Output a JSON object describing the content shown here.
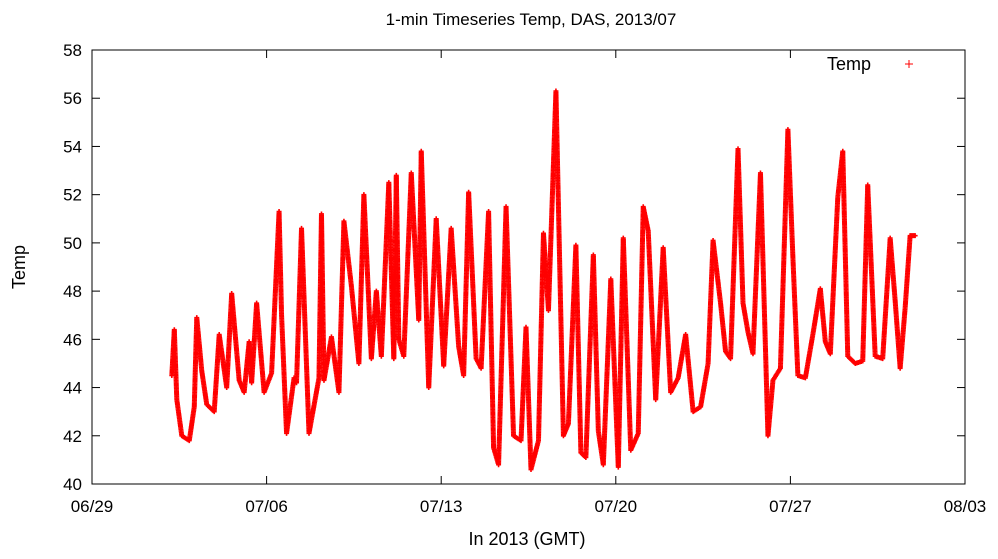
{
  "chart_data": {
    "type": "scatter",
    "title": "1-min Timeseries Temp, DAS, 2013/07",
    "xlabel": "In 2013 (GMT)",
    "ylabel": "Temp",
    "x_ticks": [
      "06/29",
      "07/06",
      "07/13",
      "07/20",
      "07/27",
      "08/03"
    ],
    "x_range_days": [
      0,
      35
    ],
    "y_ticks": [
      40,
      42,
      44,
      46,
      48,
      50,
      52,
      54,
      56,
      58
    ],
    "ylim": [
      40,
      58
    ],
    "grid": false,
    "legend": {
      "position": "top-right",
      "entries": [
        "Temp"
      ]
    },
    "series": [
      {
        "name": "Temp",
        "color": "#ff0000",
        "marker": "+",
        "x_unit": "days since 06/29",
        "x": [
          3.2,
          3.3,
          3.4,
          3.6,
          3.9,
          4.1,
          4.2,
          4.4,
          4.6,
          4.9,
          5.1,
          5.4,
          5.6,
          5.9,
          6.1,
          6.3,
          6.4,
          6.6,
          6.9,
          7.2,
          7.5,
          7.6,
          7.8,
          8.1,
          8.2,
          8.4,
          8.7,
          9.1,
          9.2,
          9.3,
          9.6,
          9.9,
          10.1,
          10.4,
          10.7,
          10.9,
          11.2,
          11.4,
          11.6,
          11.9,
          12.1,
          12.2,
          12.3,
          12.5,
          12.8,
          13.1,
          13.2,
          13.5,
          13.8,
          14.1,
          14.4,
          14.7,
          14.9,
          15.1,
          15.4,
          15.6,
          15.9,
          16.1,
          16.3,
          16.6,
          16.9,
          17.2,
          17.4,
          17.6,
          17.9,
          18.1,
          18.3,
          18.6,
          18.9,
          19.1,
          19.4,
          19.6,
          19.8,
          20.1,
          20.3,
          20.5,
          20.8,
          21.1,
          21.3,
          21.6,
          21.9,
          22.1,
          22.3,
          22.6,
          22.9,
          23.2,
          23.5,
          23.8,
          24.1,
          24.4,
          24.7,
          24.9,
          25.2,
          25.4,
          25.6,
          25.9,
          26.1,
          26.3,
          26.5,
          26.8,
          27.1,
          27.3,
          27.6,
          27.9,
          28.1,
          28.3,
          28.6,
          28.9,
          29.2,
          29.4,
          29.6,
          29.9,
          30.1,
          30.3,
          30.6,
          30.9,
          31.1,
          31.4,
          31.7,
          32.0,
          32.2,
          32.4,
          32.6,
          32.8,
          33.0
        ],
        "y": [
          44.5,
          46.4,
          43.5,
          42.0,
          41.8,
          43.2,
          46.9,
          44.7,
          43.3,
          43.0,
          46.2,
          44.0,
          47.9,
          44.3,
          43.8,
          45.9,
          44.2,
          47.5,
          43.8,
          44.6,
          51.3,
          47.0,
          42.1,
          44.4,
          44.2,
          50.6,
          42.1,
          44.4,
          51.2,
          44.3,
          46.1,
          43.8,
          50.9,
          48.2,
          45.0,
          52.0,
          45.2,
          48.0,
          45.3,
          52.5,
          45.2,
          52.8,
          46.0,
          45.3,
          52.9,
          46.8,
          53.8,
          44.0,
          51.0,
          44.9,
          50.6,
          45.7,
          44.5,
          52.1,
          45.2,
          44.8,
          51.3,
          41.5,
          40.8,
          51.5,
          42.0,
          41.8,
          46.5,
          40.6,
          41.8,
          50.4,
          47.2,
          56.3,
          42.0,
          42.5,
          49.9,
          41.3,
          41.1,
          49.5,
          42.2,
          40.8,
          48.5,
          40.7,
          50.2,
          41.4,
          42.1,
          51.5,
          50.5,
          43.5,
          49.8,
          43.8,
          44.4,
          46.2,
          43.0,
          43.2,
          45.0,
          50.1,
          47.5,
          45.5,
          45.2,
          53.9,
          47.5,
          46.3,
          45.4,
          52.9,
          42.0,
          44.3,
          44.8,
          54.7,
          49.4,
          44.5,
          44.4,
          46.2,
          48.1,
          45.9,
          45.4,
          51.9,
          53.8,
          45.3,
          45.0,
          45.1,
          52.4,
          45.3,
          45.2,
          50.2,
          47.6,
          44.8,
          47.3,
          50.3,
          50.3
        ]
      }
    ]
  }
}
